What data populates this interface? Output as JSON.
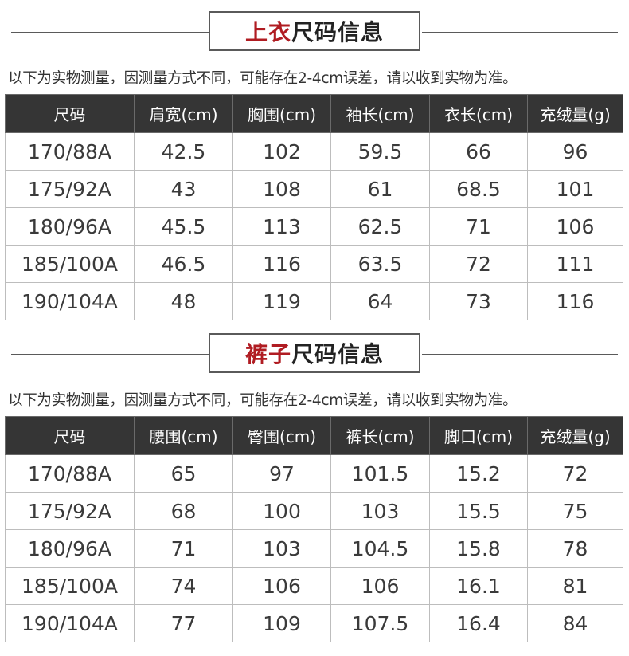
{
  "tops": {
    "title_accent": "上衣",
    "title_rest": "尺码信息",
    "note": "以下为实物测量，因测量方式不同，可能存在2-4cm误差，请以收到实物为准。",
    "headers": [
      "尺码",
      "肩宽(cm)",
      "胸围(cm)",
      "袖长(cm)",
      "衣长(cm)",
      "充绒量(g)"
    ],
    "rows": [
      [
        "170/88A",
        "42.5",
        "102",
        "59.5",
        "66",
        "96"
      ],
      [
        "175/92A",
        "43",
        "108",
        "61",
        "68.5",
        "101"
      ],
      [
        "180/96A",
        "45.5",
        "113",
        "62.5",
        "71",
        "106"
      ],
      [
        "185/100A",
        "46.5",
        "116",
        "63.5",
        "72",
        "111"
      ],
      [
        "190/104A",
        "48",
        "119",
        "64",
        "73",
        "116"
      ]
    ]
  },
  "pants": {
    "title_accent": "裤子",
    "title_rest": "尺码信息",
    "note": "以下为实物测量，因测量方式不同，可能存在2-4cm误差，请以收到实物为准。",
    "headers": [
      "尺码",
      "腰围(cm)",
      "臀围(cm)",
      "裤长(cm)",
      "脚口(cm)",
      "充绒量(g)"
    ],
    "rows": [
      [
        "170/88A",
        "65",
        "97",
        "101.5",
        "15.2",
        "72"
      ],
      [
        "175/92A",
        "68",
        "100",
        "103",
        "15.5",
        "75"
      ],
      [
        "180/96A",
        "71",
        "103",
        "104.5",
        "15.8",
        "78"
      ],
      [
        "185/100A",
        "74",
        "106",
        "106",
        "16.1",
        "81"
      ],
      [
        "190/104A",
        "77",
        "109",
        "107.5",
        "16.4",
        "84"
      ]
    ]
  },
  "colors": {
    "accent": "#b01c22",
    "header_bg": "#353535",
    "border": "#bdbdbd"
  }
}
